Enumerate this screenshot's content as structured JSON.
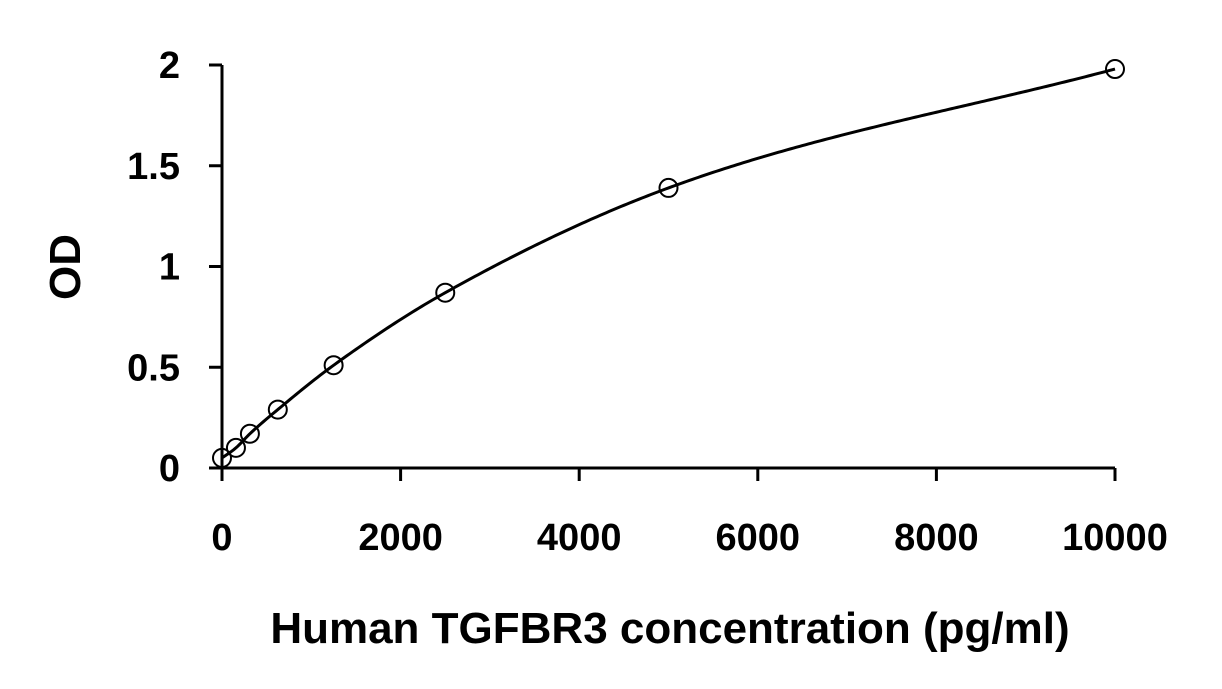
{
  "chart_data": {
    "type": "scatter",
    "title": "",
    "xlabel": "Human TGFBR3 concentration (pg/ml)",
    "ylabel": "OD",
    "xlim": [
      0,
      10000
    ],
    "ylim": [
      0,
      2
    ],
    "xticks": [
      0,
      2000,
      4000,
      6000,
      8000,
      10000
    ],
    "yticks": [
      0,
      0.5,
      1,
      1.5,
      2
    ],
    "xtick_labels": [
      "0",
      "2000",
      "4000",
      "6000",
      "8000",
      "10000"
    ],
    "ytick_labels": [
      "0",
      "0.5",
      "1",
      "1.5",
      "2"
    ],
    "grid": false,
    "legend": "none",
    "series": [
      {
        "x": [
          0,
          156.25,
          312.5,
          625,
          1250,
          2500,
          5000,
          10000
        ],
        "y": [
          0.05,
          0.1,
          0.17,
          0.29,
          0.51,
          0.87,
          1.39,
          1.98
        ],
        "marker": "open-circle",
        "fit_line": true,
        "color": "#000000"
      }
    ]
  }
}
